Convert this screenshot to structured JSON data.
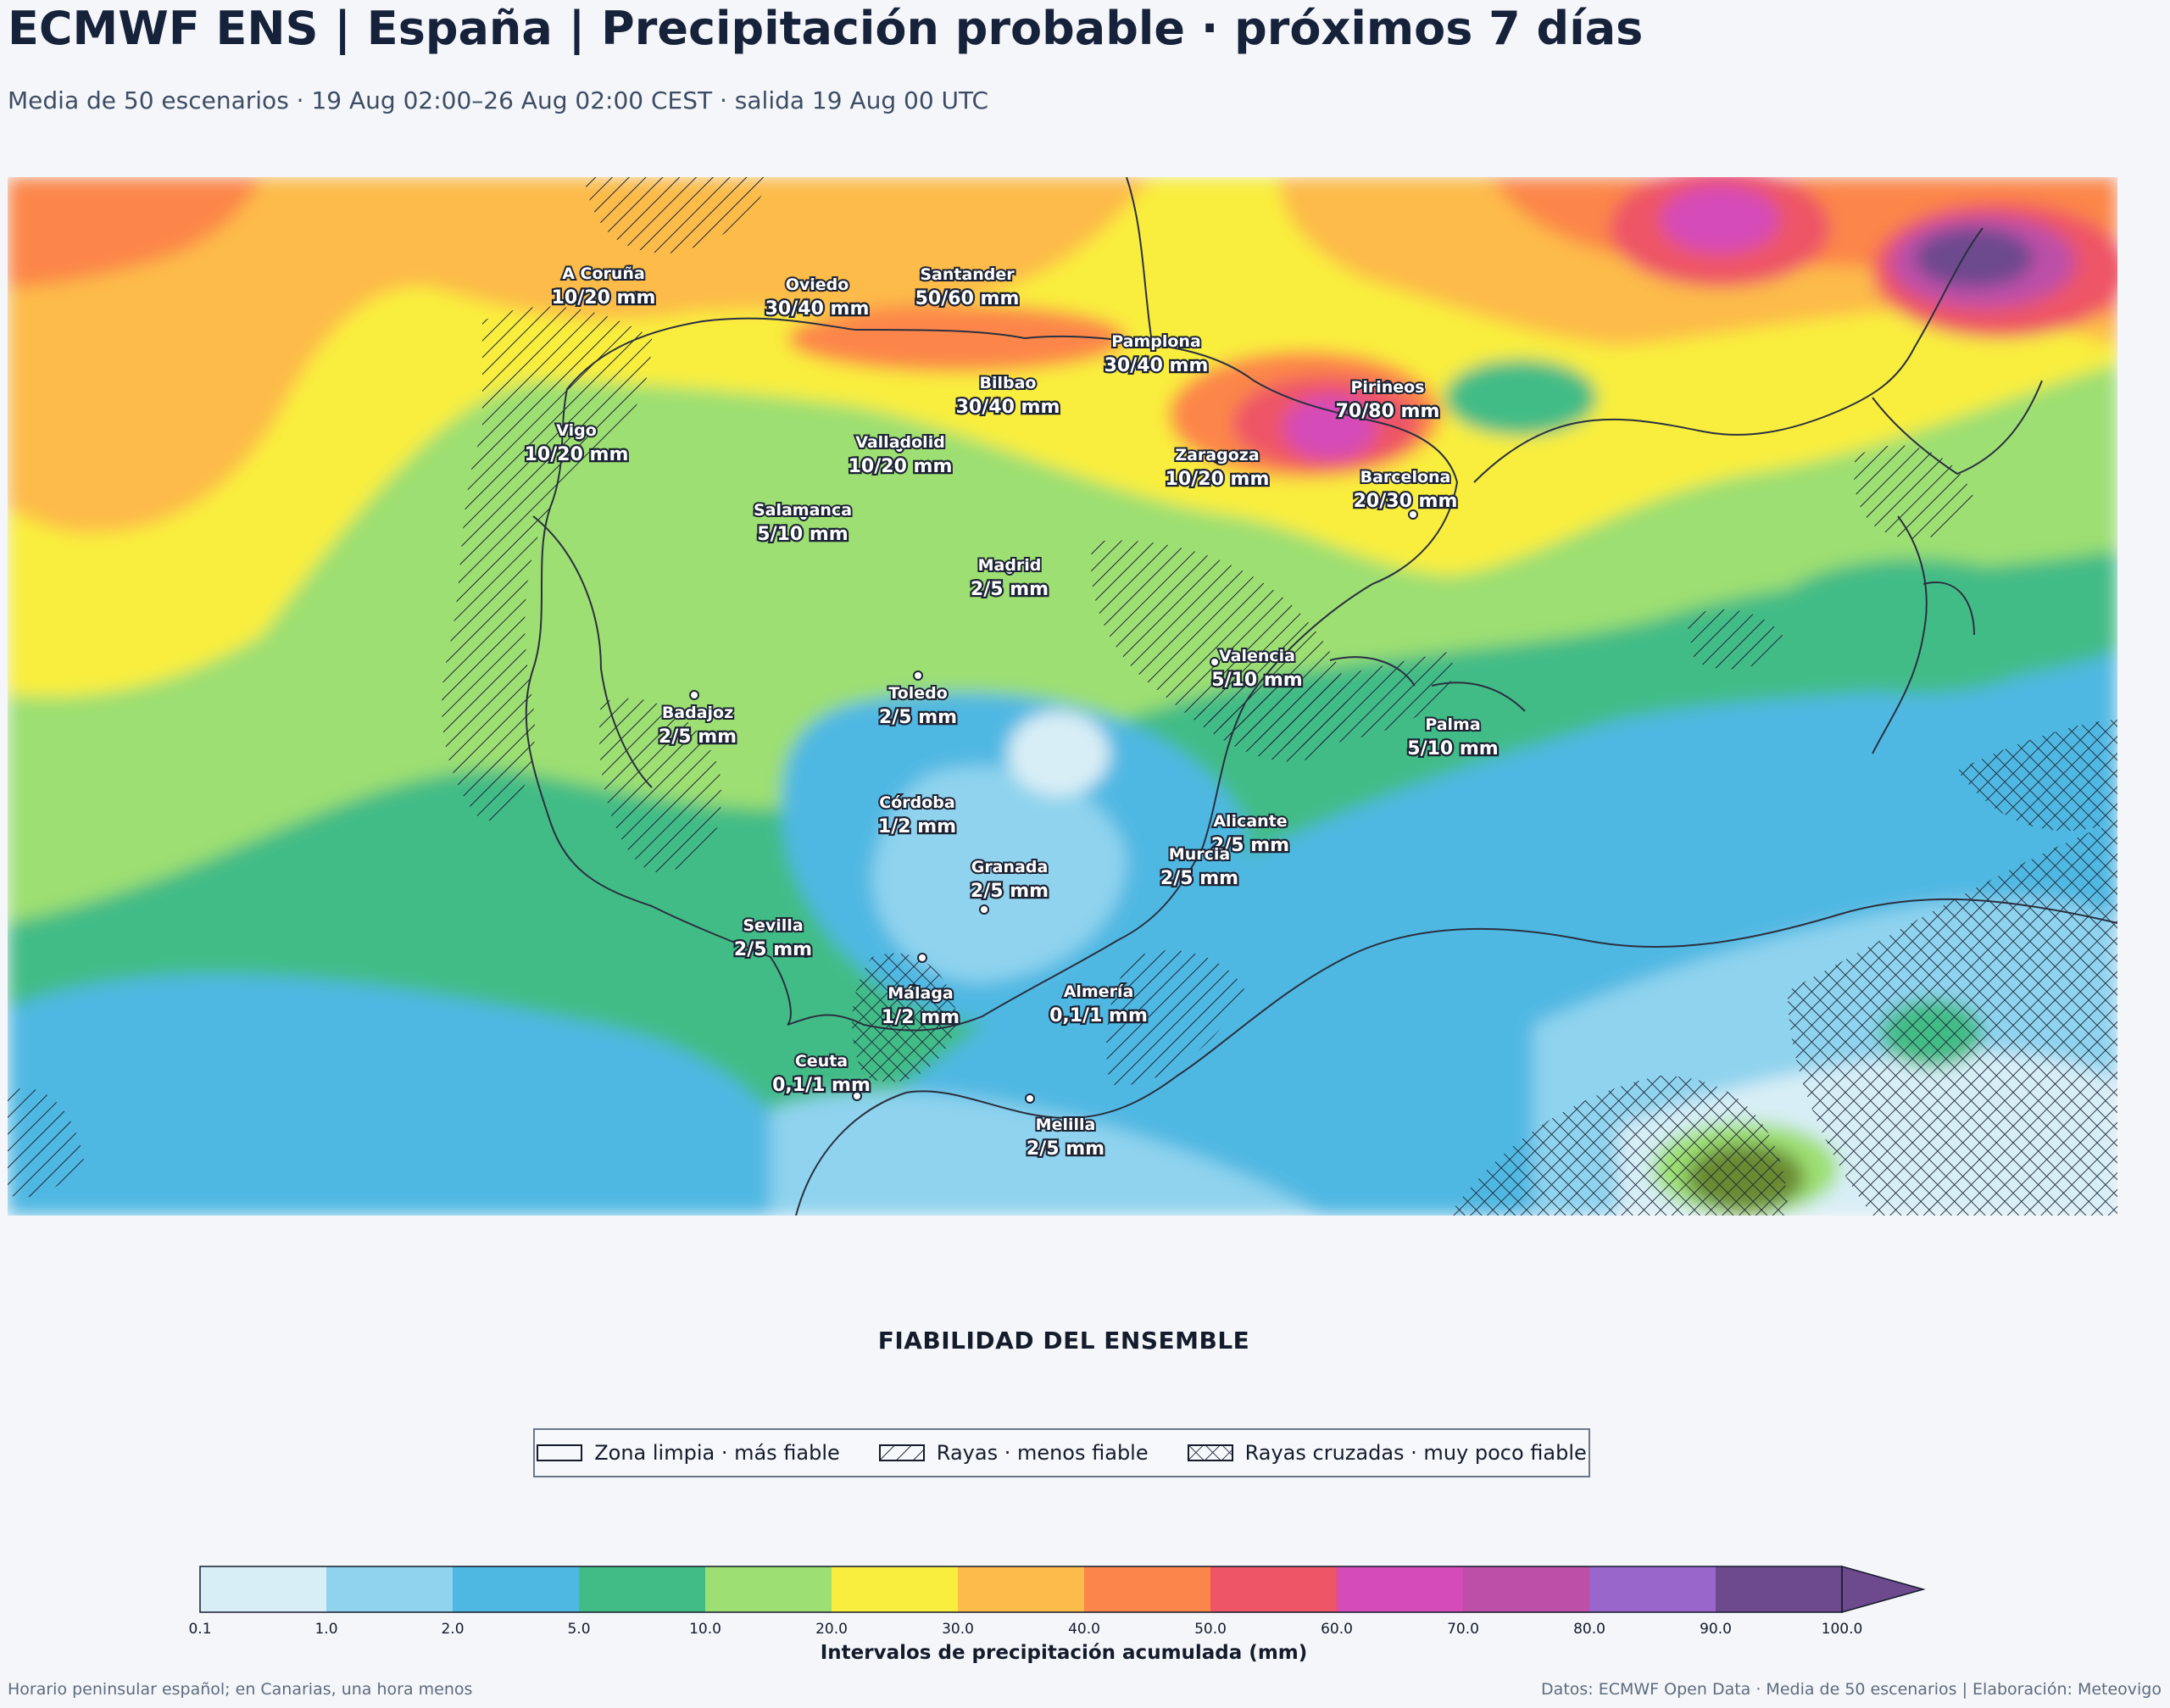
{
  "header": {
    "title": "ECMWF ENS | España | Precipitación probable · próximos 7 días",
    "subtitle": "Media de 50 escenarios · 19 Aug 02:00–26 Aug 02:00 CEST · salida 19 Aug 00 UTC"
  },
  "map": {
    "cities": [
      {
        "name": "A Coruña",
        "value": "10/20 mm"
      },
      {
        "name": "Oviedo",
        "value": "30/40 mm"
      },
      {
        "name": "Santander",
        "value": "50/60 mm"
      },
      {
        "name": "Pamplona",
        "value": "30/40 mm"
      },
      {
        "name": "Bilbao",
        "value": "30/40 mm"
      },
      {
        "name": "Pirineos",
        "value": "70/80 mm"
      },
      {
        "name": "Vigo",
        "value": "10/20 mm"
      },
      {
        "name": "Valladolid",
        "value": "10/20 mm"
      },
      {
        "name": "Zaragoza",
        "value": "10/20 mm"
      },
      {
        "name": "Barcelona",
        "value": "20/30 mm"
      },
      {
        "name": "Salamanca",
        "value": "5/10 mm"
      },
      {
        "name": "Madrid",
        "value": "2/5 mm"
      },
      {
        "name": "Valencia",
        "value": "5/10 mm"
      },
      {
        "name": "Toledo",
        "value": "2/5 mm"
      },
      {
        "name": "Badajoz",
        "value": "2/5 mm"
      },
      {
        "name": "Palma",
        "value": "5/10 mm"
      },
      {
        "name": "Córdoba",
        "value": "1/2 mm"
      },
      {
        "name": "Alicante",
        "value": "2/5 mm"
      },
      {
        "name": "Murcia",
        "value": "2/5 mm"
      },
      {
        "name": "Granada",
        "value": "2/5 mm"
      },
      {
        "name": "Sevilla",
        "value": "2/5 mm"
      },
      {
        "name": "Almería",
        "value": "0,1/1 mm"
      },
      {
        "name": "Málaga",
        "value": "1/2 mm"
      },
      {
        "name": "Ceuta",
        "value": "0,1/1 mm"
      },
      {
        "name": "Melilla",
        "value": "2/5 mm"
      }
    ]
  },
  "legend": {
    "title": "FIABILIDAD DEL ENSEMBLE",
    "items": [
      {
        "label": "Zona limpia · más fiable",
        "pattern": "none"
      },
      {
        "label": "Rayas · menos fiable",
        "pattern": "hatch"
      },
      {
        "label": "Rayas cruzadas · muy poco fiable",
        "pattern": "crosshatch"
      }
    ]
  },
  "colorbar": {
    "label": "Intervalos de precipitación acumulada (mm)",
    "ticks": [
      "0.1",
      "1.0",
      "2.0",
      "5.0",
      "10.0",
      "20.0",
      "30.0",
      "40.0",
      "50.0",
      "60.0",
      "70.0",
      "80.0",
      "90.0",
      "100.0"
    ],
    "colors": [
      "#d8eef6",
      "#8fd3ee",
      "#4fb8e2",
      "#42bc86",
      "#9ddf72",
      "#f9ee3e",
      "#fdbb49",
      "#fc8649",
      "#ee5566",
      "#d54bb8",
      "#bd4fa8",
      "#9966cc",
      "#6d4a8e"
    ]
  },
  "footer": {
    "left": "Horario peninsular español; en Canarias, una hora menos",
    "right": "Datos: ECMWF Open Data · Media de 50 escenarios | Elaboración: Meteovigo"
  }
}
